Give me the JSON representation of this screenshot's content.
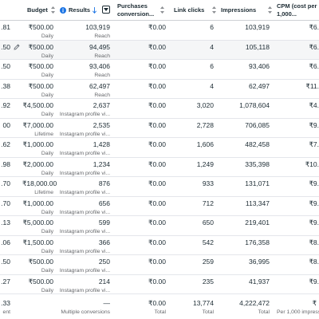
{
  "header": {
    "budget": "Budget",
    "results": "Results",
    "purchases_l1": "Purchases",
    "purchases_l2": "conversion...",
    "link_clicks": "Link clicks",
    "impressions": "Impressions",
    "cpm_l1": "CPM (cost per",
    "cpm_l2": "1,000..."
  },
  "rows": [
    {
      "spent": ".81",
      "budget": "₹500.00",
      "budget_type": "Daily",
      "results": "103,919",
      "result_type": "Reach",
      "purchases": "₹0.00",
      "link_clicks": "6",
      "impressions": "103,919",
      "cpm": "₹6."
    },
    {
      "spent": ".50",
      "budget": "₹500.00",
      "budget_type": "Daily",
      "results": "94,495",
      "result_type": "Reach",
      "purchases": "₹0.00",
      "link_clicks": "4",
      "impressions": "105,118",
      "cpm": "₹6.",
      "hovered": true
    },
    {
      "spent": ".50",
      "budget": "₹500.00",
      "budget_type": "Daily",
      "results": "93,406",
      "result_type": "Reach",
      "purchases": "₹0.00",
      "link_clicks": "6",
      "impressions": "93,406",
      "cpm": "₹6."
    },
    {
      "spent": ".38",
      "budget": "₹500.00",
      "budget_type": "Daily",
      "results": "62,497",
      "result_type": "Reach",
      "purchases": "₹0.00",
      "link_clicks": "4",
      "impressions": "62,497",
      "cpm": "₹11."
    },
    {
      "spent": ".92",
      "budget": "₹4,500.00",
      "budget_type": "Daily",
      "results": "2,637",
      "result_type": "Instagram profile vi...",
      "purchases": "₹0.00",
      "link_clicks": "3,020",
      "impressions": "1,078,604",
      "cpm": "₹4."
    },
    {
      "spent": "00",
      "budget": "₹7,000.00",
      "budget_type": "Lifetime",
      "results": "2,535",
      "result_type": "Instagram profile vi...",
      "purchases": "₹0.00",
      "link_clicks": "2,728",
      "impressions": "706,085",
      "cpm": "₹9."
    },
    {
      "spent": ".62",
      "budget": "₹1,000.00",
      "budget_type": "Daily",
      "results": "1,428",
      "result_type": "Instagram profile vi...",
      "purchases": "₹0.00",
      "link_clicks": "1,606",
      "impressions": "482,458",
      "cpm": "₹7."
    },
    {
      "spent": ".98",
      "budget": "₹2,000.00",
      "budget_type": "Daily",
      "results": "1,234",
      "result_type": "Instagram profile vi...",
      "purchases": "₹0.00",
      "link_clicks": "1,249",
      "impressions": "335,398",
      "cpm": "₹10."
    },
    {
      "spent": ".70",
      "budget": "₹18,000.00",
      "budget_type": "Lifetime",
      "results": "876",
      "result_type": "Instagram profile vi...",
      "purchases": "₹0.00",
      "link_clicks": "933",
      "impressions": "131,071",
      "cpm": "₹9."
    },
    {
      "spent": ".70",
      "budget": "₹1,000.00",
      "budget_type": "Daily",
      "results": "656",
      "result_type": "Instagram profile vi...",
      "purchases": "₹0.00",
      "link_clicks": "712",
      "impressions": "113,347",
      "cpm": "₹9."
    },
    {
      "spent": ".13",
      "budget": "₹5,000.00",
      "budget_type": "Daily",
      "results": "599",
      "result_type": "Instagram profile vi...",
      "purchases": "₹0.00",
      "link_clicks": "650",
      "impressions": "219,401",
      "cpm": "₹9."
    },
    {
      "spent": ".06",
      "budget": "₹1,500.00",
      "budget_type": "Daily",
      "results": "366",
      "result_type": "Instagram profile vi...",
      "purchases": "₹0.00",
      "link_clicks": "542",
      "impressions": "176,358",
      "cpm": "₹8."
    },
    {
      "spent": ".50",
      "budget": "₹500.00",
      "budget_type": "Daily",
      "results": "250",
      "result_type": "Instagram profile vi...",
      "purchases": "₹0.00",
      "link_clicks": "259",
      "impressions": "36,995",
      "cpm": "₹8."
    },
    {
      "spent": ".27",
      "budget": "₹500.00",
      "budget_type": "Daily",
      "results": "214",
      "result_type": "Instagram profile vi...",
      "purchases": "₹0.00",
      "link_clicks": "235",
      "impressions": "41,937",
      "cpm": "₹9."
    }
  ],
  "totals": {
    "spent": ".33",
    "spent_label": "ent",
    "results": "—",
    "results_label": "Multiple conversions",
    "purchases": "₹0.00",
    "purchases_label": "Total",
    "link_clicks": "13,774",
    "link_clicks_label": "Total",
    "impressions": "4,222,472",
    "impressions_label": "Total",
    "cpm": "₹",
    "cpm_label": "Per 1,000 impress"
  },
  "icons": {
    "info": "info-icon",
    "sort_desc": "arrow-down-icon",
    "column_menu": "dropdown-box-icon",
    "column_sort": "sort-icon",
    "edit": "pencil-icon"
  },
  "colors": {
    "accent": "#1b74e4",
    "text": "#1c2b33",
    "subtext": "#65676b",
    "hover_row": "#f5f6f7",
    "border": "#e4e6eb"
  }
}
